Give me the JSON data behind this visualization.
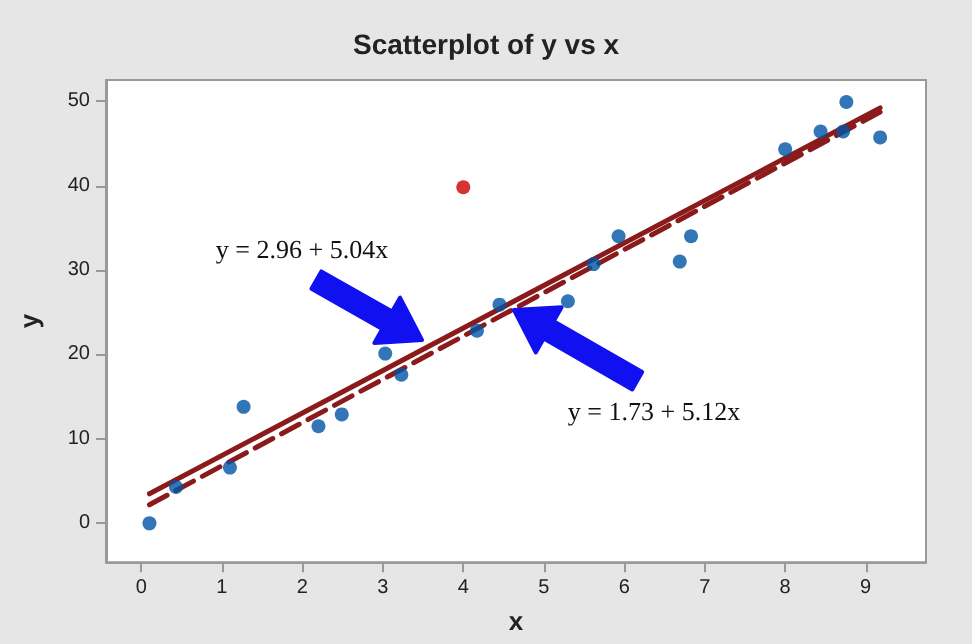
{
  "chart_data": {
    "type": "scatter",
    "title": "Scatterplot of y vs x",
    "xlabel": "x",
    "ylabel": "y",
    "xlim": [
      -0.44,
      9.75
    ],
    "ylim": [
      -4.6,
      52.5
    ],
    "xticks": [
      0,
      1,
      2,
      3,
      4,
      5,
      6,
      7,
      8,
      9
    ],
    "yticks": [
      0,
      10,
      20,
      30,
      40,
      50
    ],
    "grid": false,
    "marker": "circle",
    "series": [
      {
        "color": "#0054a6",
        "x": [
          0.1,
          0.43,
          1.1,
          1.27,
          2.2,
          2.49,
          3.03,
          3.23,
          4.17,
          4.45,
          5.3,
          5.62,
          5.93,
          6.69,
          6.83,
          8.0,
          8.44,
          8.72,
          8.76,
          9.18
        ],
        "values": [
          0,
          4.3,
          6.6,
          13.8,
          11.5,
          12.9,
          20.1,
          17.6,
          22.8,
          25.9,
          26.3,
          30.7,
          34,
          31,
          34,
          44.3,
          46.4,
          46.4,
          49.9,
          45.7
        ]
      },
      {
        "color": "#cc0000",
        "x": [
          4.0
        ],
        "values": [
          39.8
        ]
      },
      {
        "type": "line",
        "color": "#8b1a1a",
        "line_style": "solid",
        "marker": "none",
        "x": [
          0.1,
          9.18
        ],
        "values": [
          3.5,
          49.2
        ]
      },
      {
        "type": "line",
        "color": "#8b1a1a",
        "line_style": "dashed",
        "marker": "none",
        "x": [
          0.1,
          9.18
        ],
        "values": [
          2.2,
          48.7
        ]
      }
    ],
    "annotations": [
      "y = 2.96 + 5.04x",
      "y = 1.73 + 5.12x"
    ]
  }
}
